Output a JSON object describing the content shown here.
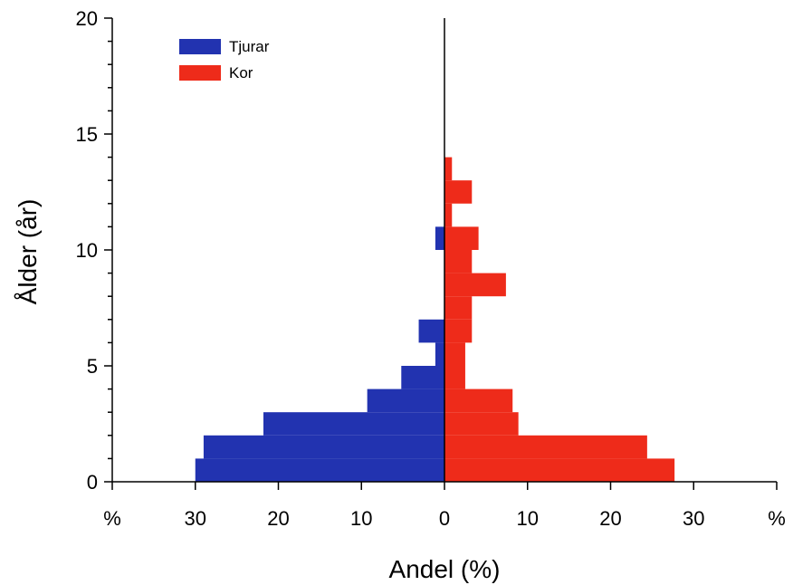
{
  "chart_data": {
    "type": "bar",
    "orientation": "horizontal",
    "layout": "back-to-back population pyramid",
    "xlabel": "Andel (%)",
    "ylabel": "Ålder (år)",
    "xlim": [
      -40,
      40
    ],
    "ylim": [
      0,
      20
    ],
    "x_ticks": [
      {
        "value": -40,
        "label": "%"
      },
      {
        "value": -30,
        "label": "30"
      },
      {
        "value": -20,
        "label": "20"
      },
      {
        "value": -10,
        "label": "10"
      },
      {
        "value": 0,
        "label": "0"
      },
      {
        "value": 10,
        "label": "10"
      },
      {
        "value": 20,
        "label": "20"
      },
      {
        "value": 30,
        "label": "30"
      },
      {
        "value": 40,
        "label": "%"
      }
    ],
    "y_ticks": [
      {
        "value": 0,
        "label": "0"
      },
      {
        "value": 5,
        "label": "5"
      },
      {
        "value": 10,
        "label": "10"
      },
      {
        "value": 15,
        "label": "15"
      },
      {
        "value": 20,
        "label": "20"
      }
    ],
    "y_minor_step": 1,
    "grid": false,
    "legend": "top-left",
    "categories": [
      0,
      1,
      2,
      3,
      4,
      5,
      6,
      7,
      8,
      9,
      10,
      11,
      12,
      13,
      14
    ],
    "series": [
      {
        "name": "Tjurar",
        "side": "left",
        "color": "#2233b0",
        "values": [
          30.0,
          29.0,
          21.8,
          9.3,
          5.2,
          1.1,
          3.1,
          0,
          0,
          0,
          1.1,
          0,
          0,
          0,
          0
        ]
      },
      {
        "name": "Kor",
        "side": "right",
        "color": "#ee2b1a",
        "values": [
          27.7,
          24.4,
          8.9,
          8.2,
          2.5,
          2.5,
          3.3,
          3.3,
          7.4,
          3.3,
          4.1,
          0.9,
          3.3,
          0.9,
          0
        ]
      }
    ]
  }
}
